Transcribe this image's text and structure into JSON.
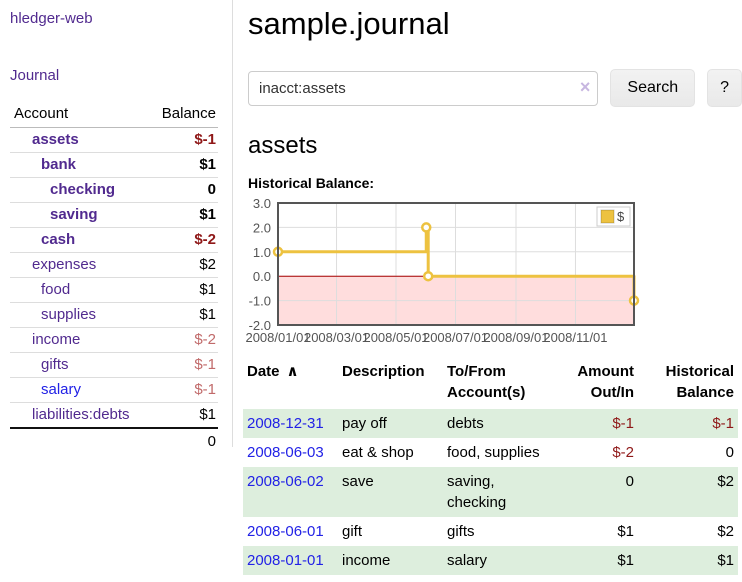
{
  "app": {
    "brand": "hledger-web"
  },
  "colors": {
    "purple": "#512a8f",
    "blue": "#2222e6",
    "neg": "#8f1818",
    "neg_soft": "#c16a6a",
    "stripe": "#ddeedd",
    "accent": "#edc240",
    "pink": "#ffdddd",
    "zero": "#aa0000"
  },
  "sidebar": {
    "nav_journal": "Journal",
    "accounts": {
      "col_account": "Account",
      "col_balance": "Balance",
      "rows": [
        {
          "name": "assets",
          "balance": "$-1",
          "depth": 1,
          "matched": true
        },
        {
          "name": "bank",
          "balance": "$1",
          "depth": 2,
          "matched": true
        },
        {
          "name": "checking",
          "balance": "0",
          "depth": 3,
          "matched": true
        },
        {
          "name": "saving",
          "balance": "$1",
          "depth": 3,
          "matched": true
        },
        {
          "name": "cash",
          "balance": "$-2",
          "depth": 2,
          "matched": true
        },
        {
          "name": "expenses",
          "balance": "$2",
          "depth": 1,
          "matched": false
        },
        {
          "name": "food",
          "balance": "$1",
          "depth": 2,
          "matched": false
        },
        {
          "name": "supplies",
          "balance": "$1",
          "depth": 2,
          "matched": false
        },
        {
          "name": "income",
          "balance": "$-2",
          "depth": 1,
          "matched": false
        },
        {
          "name": "gifts",
          "balance": "$-1",
          "depth": 2,
          "matched": false
        },
        {
          "name": "salary",
          "balance": "$-1",
          "depth": 2,
          "matched": false,
          "unvisited": true
        },
        {
          "name": "liabilities:debts",
          "balance": "$1",
          "depth": 1,
          "matched": false
        }
      ],
      "total": "0"
    }
  },
  "main": {
    "title": "sample.journal",
    "search": {
      "value": "inacct:assets",
      "clear_icon": "×",
      "search_button": "Search",
      "help_button": "?"
    },
    "account_heading": "assets",
    "chart_title": "Historical Balance:",
    "register": {
      "sort_icon": "∧",
      "headers": [
        {
          "line1": "Date",
          "line2": "",
          "sorted": true
        },
        {
          "line1": "Description",
          "line2": ""
        },
        {
          "line1": "To/From",
          "line2": "Account(s)"
        },
        {
          "line1": "Amount",
          "line2": "Out/In",
          "align": "right"
        },
        {
          "line1": "Historical",
          "line2": "Balance",
          "align": "right"
        }
      ],
      "rows": [
        {
          "date": "2008-12-31",
          "description": "pay off",
          "accounts": "debts",
          "amount": "$-1",
          "balance": "$-1"
        },
        {
          "date": "2008-06-03",
          "description": "eat & shop",
          "accounts": "food, supplies",
          "amount": "$-2",
          "balance": "0"
        },
        {
          "date": "2008-06-02",
          "description": "save",
          "accounts": "saving, checking",
          "amount": "0",
          "balance": "$2"
        },
        {
          "date": "2008-06-01",
          "description": "gift",
          "accounts": "gifts",
          "amount": "$1",
          "balance": "$2"
        },
        {
          "date": "2008-01-01",
          "description": "income",
          "accounts": "salary",
          "amount": "$1",
          "balance": "$1"
        }
      ]
    }
  },
  "chart_data": {
    "type": "line",
    "style": "step",
    "title": "Historical Balance:",
    "x_ticks": [
      "2008/01/01",
      "2008/03/01",
      "2008/05/01",
      "2008/07/01",
      "2008/09/01",
      "2008/11/01"
    ],
    "y_ticks": [
      3.0,
      2.0,
      1.0,
      0.0,
      -1.0,
      -2.0
    ],
    "xlim": [
      "2008-01-01",
      "2008-12-31"
    ],
    "ylim": [
      -2,
      3
    ],
    "grid": true,
    "legend_position": "top-right",
    "series": [
      {
        "name": "$",
        "color": "#edc240",
        "points": [
          [
            "2008-01-01",
            1
          ],
          [
            "2008-06-01",
            2
          ],
          [
            "2008-06-03",
            0
          ],
          [
            "2008-12-31",
            -1
          ]
        ]
      }
    ],
    "negative_region_color": "#ffdddd",
    "zero_line_color": "#aa0000"
  }
}
